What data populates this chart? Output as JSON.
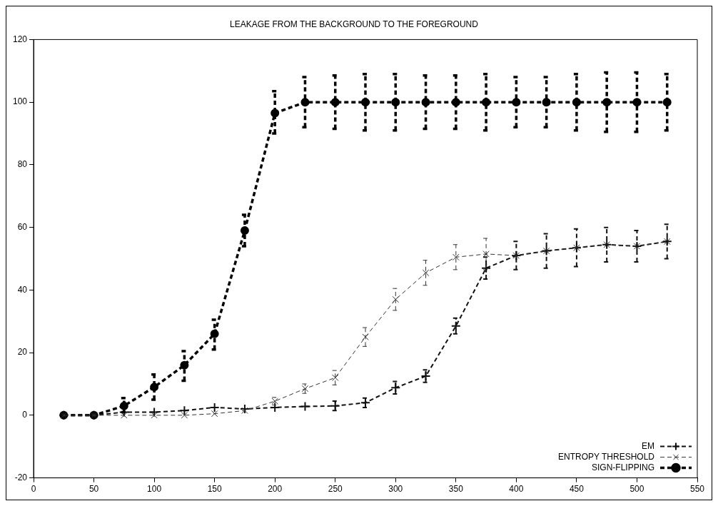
{
  "chart_data": {
    "type": "line",
    "title": "LEAKAGE FROM THE BACKGROUND TO THE FOREGROUND",
    "x": [
      25,
      50,
      75,
      100,
      125,
      150,
      175,
      200,
      225,
      250,
      275,
      300,
      325,
      350,
      375,
      400,
      425,
      450,
      475,
      500,
      525
    ],
    "xlim": [
      0,
      550
    ],
    "xticks": [
      0,
      50,
      100,
      150,
      200,
      250,
      300,
      350,
      400,
      450,
      500,
      550
    ],
    "ylim": [
      -20,
      120
    ],
    "yticks": [
      -20,
      0,
      20,
      40,
      60,
      80,
      100,
      120
    ],
    "grid": false,
    "legend": "bottom right",
    "line_style": "dashed",
    "series": [
      {
        "name": "EM",
        "color": "#111111",
        "marker": "cross",
        "values": [
          0,
          0,
          1,
          1,
          1.5,
          2.5,
          2,
          2.5,
          2.8,
          3,
          4,
          8.8,
          12.5,
          28.5,
          47,
          51,
          52.5,
          53.5,
          54.5,
          54,
          55.5
        ],
        "errors": [
          null,
          null,
          null,
          null,
          null,
          null,
          null,
          null,
          null,
          1.5,
          1.5,
          2,
          2,
          2.5,
          3.5,
          4.5,
          5.5,
          6,
          5.5,
          5,
          5.5
        ]
      },
      {
        "name": "ENTROPY THRESHOLD",
        "color": "#333333",
        "marker": "cross",
        "values": [
          0,
          0,
          0,
          0,
          0,
          0.5,
          1.5,
          4.5,
          8.5,
          12,
          25,
          37,
          45.5,
          50.5,
          51.5,
          51,
          52.5,
          53.5,
          54.5,
          54,
          55.5
        ],
        "errors": [
          null,
          null,
          null,
          null,
          null,
          null,
          null,
          1.2,
          1.5,
          2.3,
          3,
          3.5,
          4,
          4,
          5,
          null,
          null,
          null,
          null,
          null,
          null
        ]
      },
      {
        "name": "SIGN-FLIPPING",
        "color": "#000000",
        "marker": "circle",
        "values": [
          0,
          0,
          3,
          9,
          16,
          26,
          59,
          96.5,
          100,
          100,
          100,
          100,
          100,
          100,
          100,
          100,
          100,
          100,
          100,
          100,
          100
        ],
        "errors": [
          null,
          null,
          [
            1,
            5.5
          ],
          [
            5,
            13
          ],
          [
            11,
            20.5
          ],
          [
            21,
            30.5
          ],
          [
            54,
            64
          ],
          [
            90,
            103.5
          ],
          [
            92,
            108
          ],
          [
            91.5,
            108.5
          ],
          [
            91,
            109
          ],
          [
            91,
            109
          ],
          [
            91.5,
            108.5
          ],
          [
            91.5,
            108.5
          ],
          [
            91,
            109
          ],
          [
            92,
            108
          ],
          [
            92,
            108
          ],
          [
            91,
            109
          ],
          [
            90.5,
            109.5
          ],
          [
            90.5,
            109.5
          ],
          [
            91,
            109
          ]
        ]
      }
    ]
  }
}
